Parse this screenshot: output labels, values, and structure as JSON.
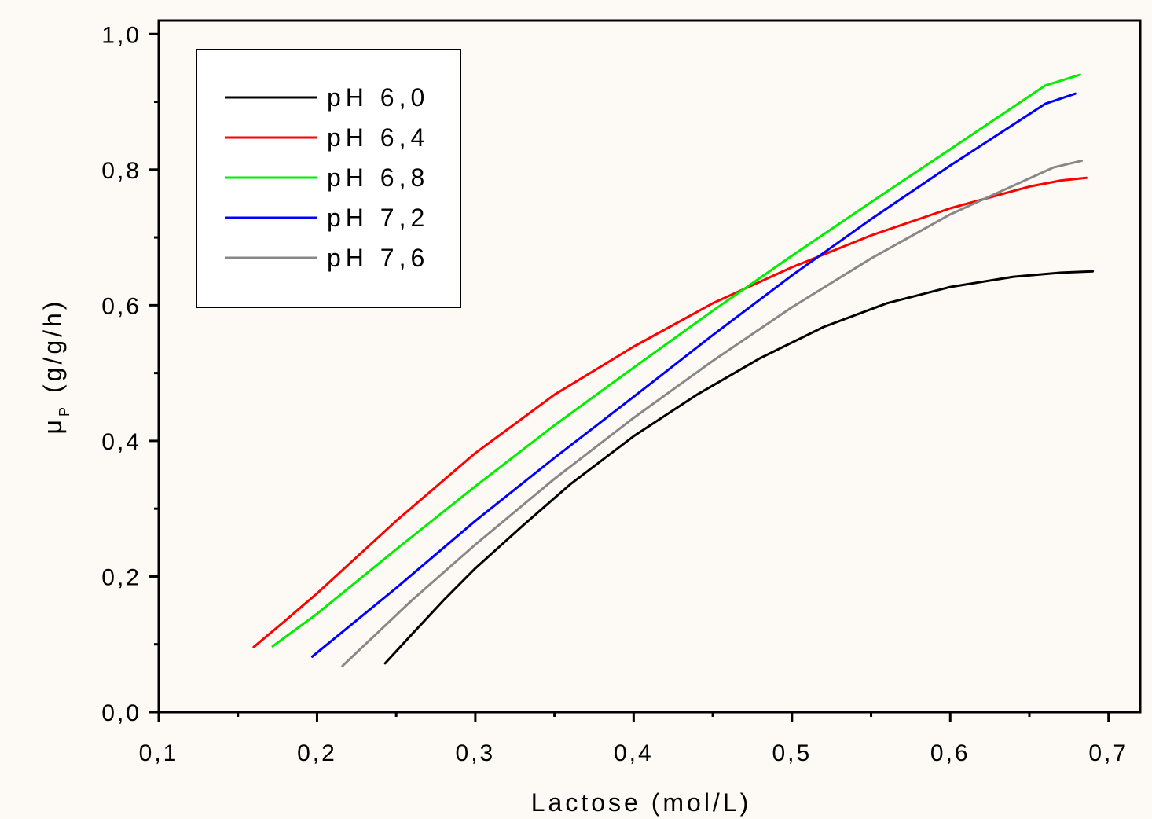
{
  "chart_data": {
    "type": "line",
    "xlabel": "Lactose (mol/L)",
    "ylabel_main": "μ",
    "ylabel_sub": "P",
    "ylabel_unit": "(g/g/h)",
    "xlim": [
      0.1,
      0.72
    ],
    "ylim": [
      0.0,
      1.02
    ],
    "x_ticks": [
      {
        "value": 0.1,
        "label": "0,1"
      },
      {
        "value": 0.2,
        "label": "0,2"
      },
      {
        "value": 0.3,
        "label": "0,3"
      },
      {
        "value": 0.4,
        "label": "0,4"
      },
      {
        "value": 0.5,
        "label": "0,5"
      },
      {
        "value": 0.6,
        "label": "0,6"
      },
      {
        "value": 0.7,
        "label": "0,7"
      }
    ],
    "y_ticks": [
      {
        "value": 0.0,
        "label": "0,0"
      },
      {
        "value": 0.2,
        "label": "0,2"
      },
      {
        "value": 0.4,
        "label": "0,4"
      },
      {
        "value": 0.6,
        "label": "0,6"
      },
      {
        "value": 0.8,
        "label": "0,8"
      },
      {
        "value": 1.0,
        "label": "1,0"
      }
    ],
    "grid": false,
    "legend_position": "top-left",
    "series": [
      {
        "name": "pH 6,0",
        "color": "#000000",
        "x": [
          0.243,
          0.26,
          0.28,
          0.3,
          0.33,
          0.36,
          0.4,
          0.44,
          0.48,
          0.52,
          0.56,
          0.6,
          0.64,
          0.67,
          0.69
        ],
        "y": [
          0.072,
          0.115,
          0.165,
          0.212,
          0.275,
          0.336,
          0.407,
          0.468,
          0.522,
          0.568,
          0.603,
          0.627,
          0.642,
          0.648,
          0.65
        ]
      },
      {
        "name": "pH 6,4",
        "color": "#ff0000",
        "x": [
          0.16,
          0.18,
          0.2,
          0.25,
          0.3,
          0.35,
          0.4,
          0.45,
          0.5,
          0.55,
          0.6,
          0.65,
          0.67,
          0.686
        ],
        "y": [
          0.096,
          0.135,
          0.175,
          0.282,
          0.382,
          0.468,
          0.539,
          0.603,
          0.656,
          0.703,
          0.743,
          0.775,
          0.784,
          0.788
        ]
      },
      {
        "name": "pH 6,8",
        "color": "#00ee00",
        "x": [
          0.172,
          0.2,
          0.25,
          0.3,
          0.35,
          0.4,
          0.45,
          0.5,
          0.55,
          0.6,
          0.66,
          0.682
        ],
        "y": [
          0.097,
          0.145,
          0.24,
          0.333,
          0.423,
          0.508,
          0.592,
          0.673,
          0.752,
          0.83,
          0.924,
          0.94
        ]
      },
      {
        "name": "pH 7,2",
        "color": "#0000ff",
        "x": [
          0.197,
          0.25,
          0.3,
          0.35,
          0.4,
          0.45,
          0.5,
          0.55,
          0.6,
          0.66,
          0.679
        ],
        "y": [
          0.082,
          0.183,
          0.282,
          0.375,
          0.465,
          0.556,
          0.644,
          0.727,
          0.806,
          0.897,
          0.912
        ]
      },
      {
        "name": "pH 7,6",
        "color": "#888888",
        "x": [
          0.216,
          0.26,
          0.3,
          0.35,
          0.4,
          0.45,
          0.5,
          0.55,
          0.6,
          0.665,
          0.683
        ],
        "y": [
          0.068,
          0.165,
          0.247,
          0.344,
          0.434,
          0.518,
          0.597,
          0.669,
          0.734,
          0.803,
          0.813
        ]
      }
    ]
  }
}
